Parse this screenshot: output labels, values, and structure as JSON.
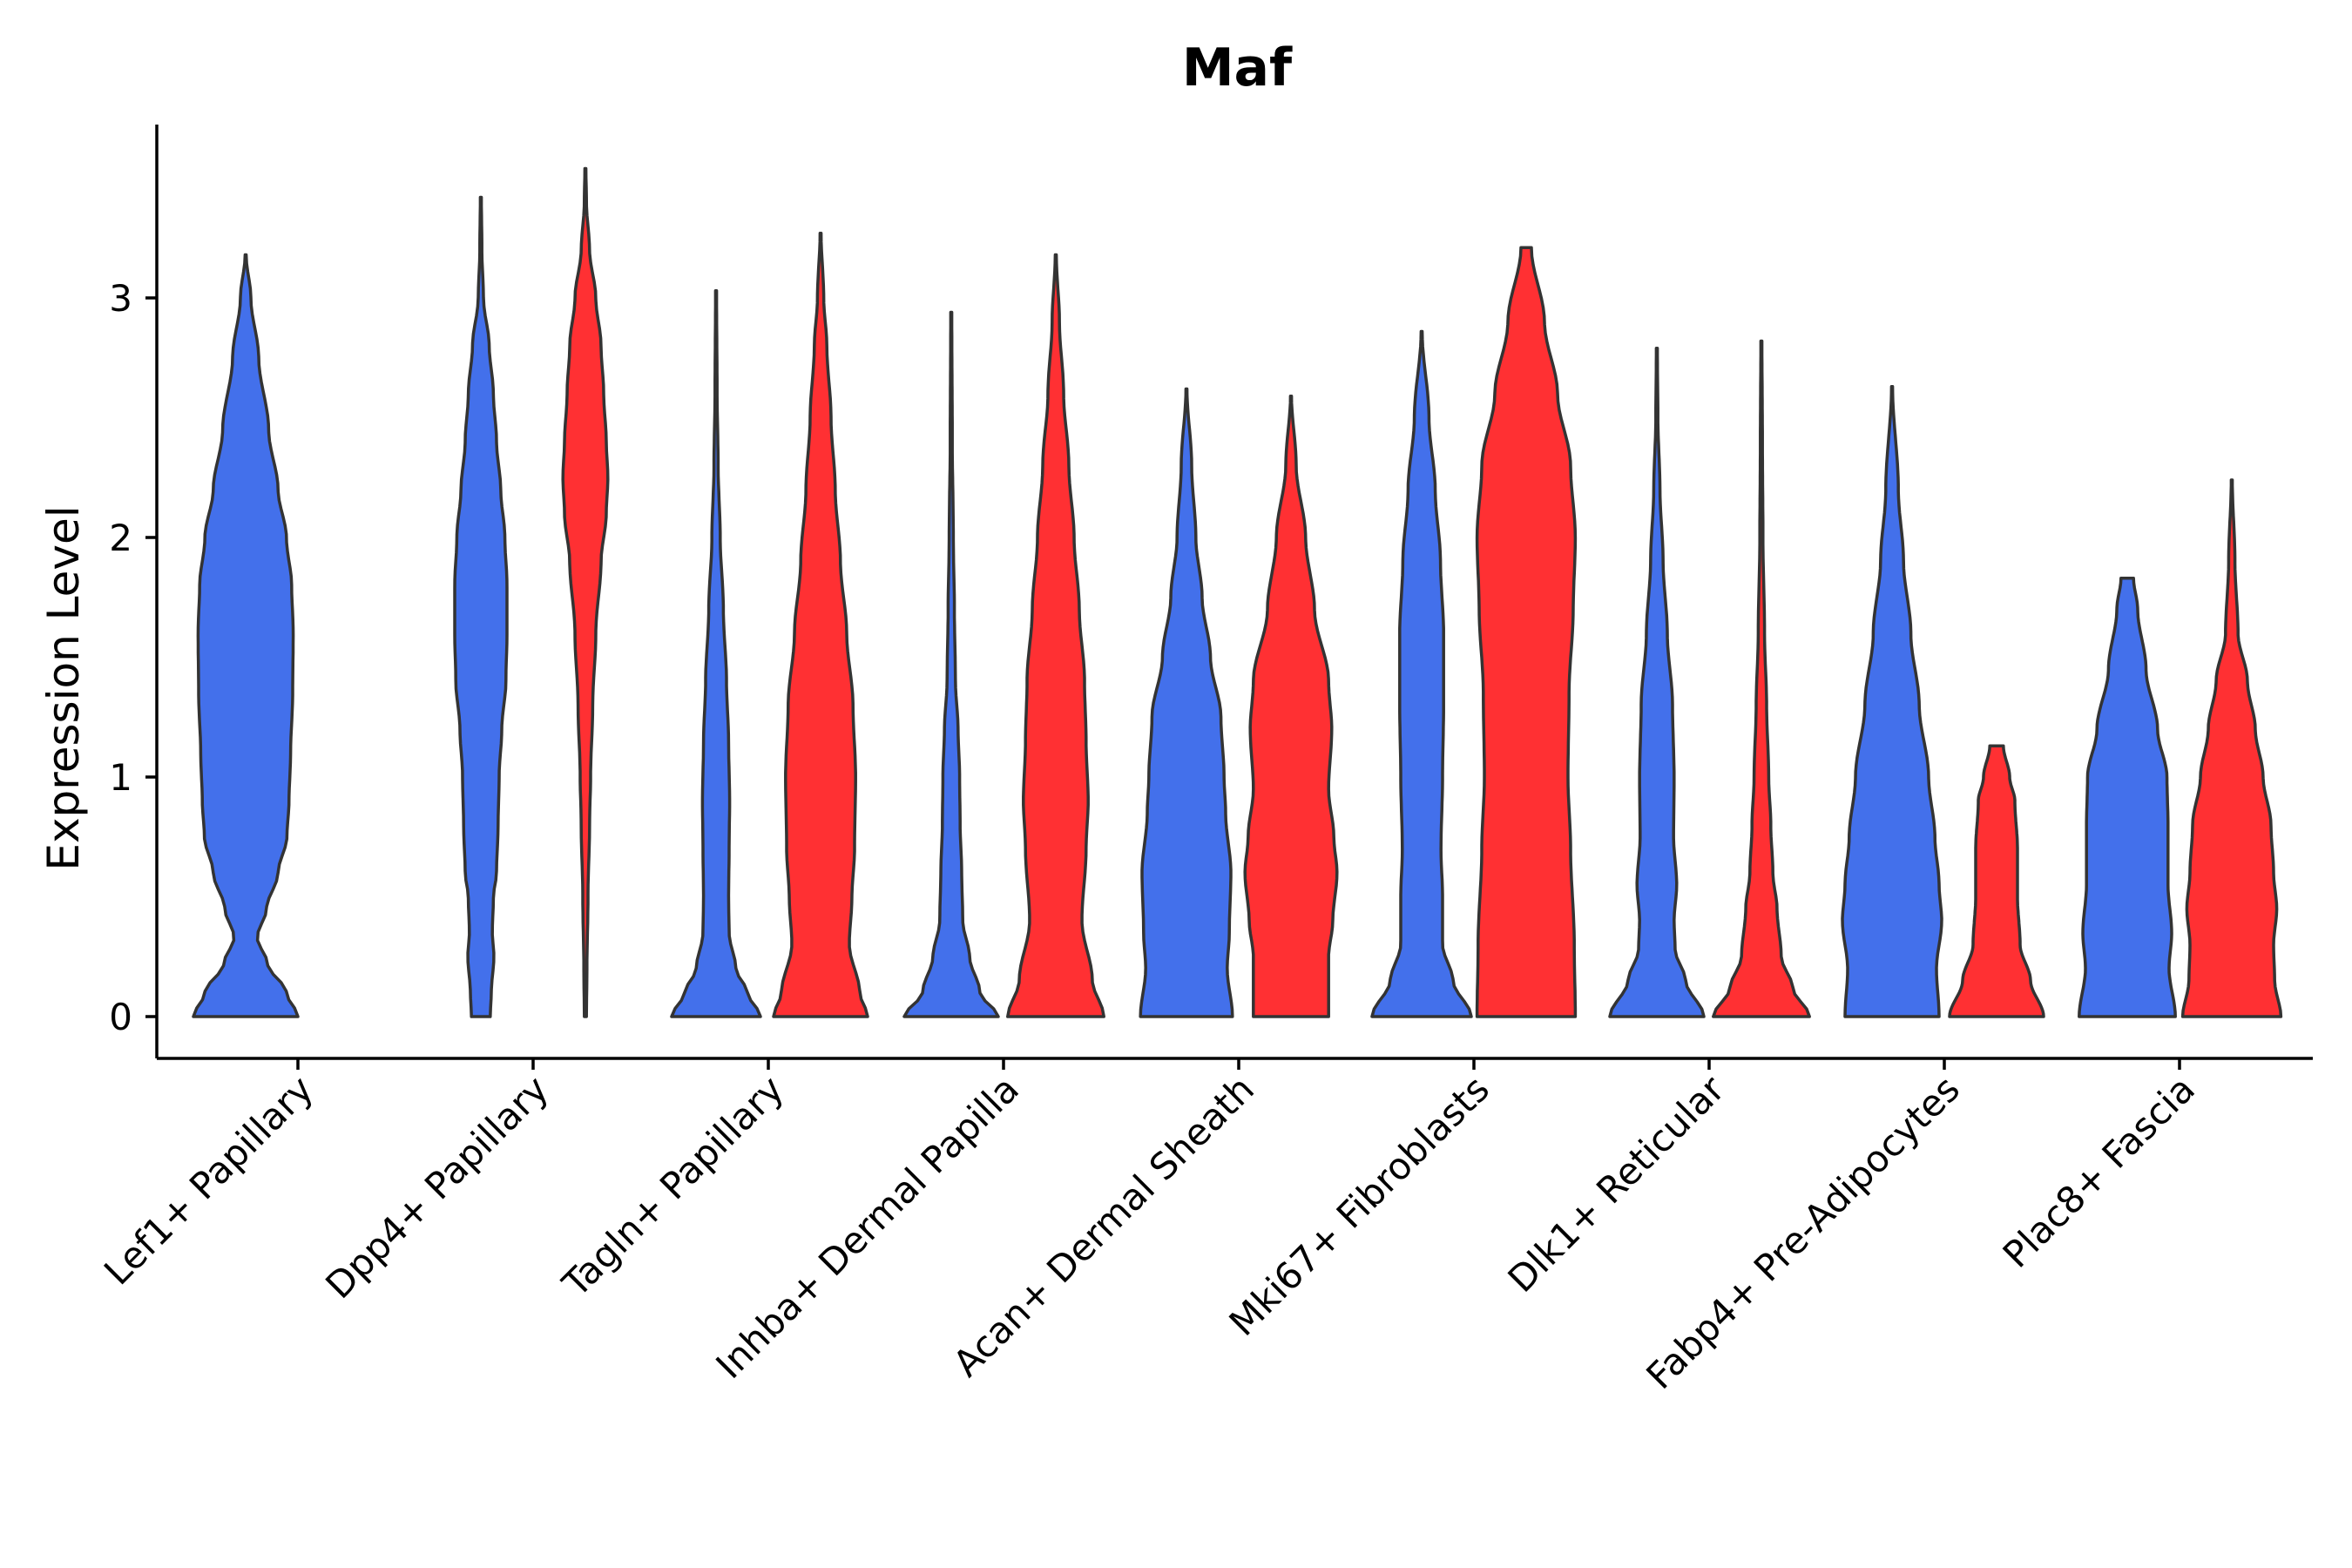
{
  "chart_data": {
    "type": "violin",
    "title": "Maf",
    "xlabel": "",
    "ylabel": "Expression Level",
    "ylim": [
      -0.17,
      3.72
    ],
    "y_ticks": [
      0,
      1,
      2,
      3
    ],
    "y_tick_labels": [
      "0",
      "1",
      "2",
      "3"
    ],
    "categories": [
      "Lef1+ Papillary",
      "Dpp4+ Papillary",
      "Tagln+ Papillary",
      "Inhba+ Dermal Papilla",
      "Acan+ Dermal Sheath",
      "Mki67+ Fibroblasts",
      "Dlk1+ Reticular",
      "Fabp4+ Pre-Adipocytes",
      "Plac8+ Fascia"
    ],
    "split_colors": [
      "#4370EB",
      "#FF3033"
    ],
    "violins": [
      {
        "category": "Lef1+ Papillary",
        "split": "left",
        "max": 3.18,
        "profile": [
          [
            0,
            1.0
          ],
          [
            0.1,
            0.78
          ],
          [
            0.22,
            0.42
          ],
          [
            0.33,
            0.22
          ],
          [
            0.45,
            0.4
          ],
          [
            0.6,
            0.62
          ],
          [
            0.75,
            0.79
          ],
          [
            0.9,
            0.83
          ],
          [
            1.1,
            0.86
          ],
          [
            1.35,
            0.9
          ],
          [
            1.6,
            0.91
          ],
          [
            1.8,
            0.88
          ],
          [
            2.0,
            0.78
          ],
          [
            2.2,
            0.62
          ],
          [
            2.45,
            0.44
          ],
          [
            2.75,
            0.25
          ],
          [
            3.0,
            0.1
          ],
          [
            3.18,
            0.01
          ]
        ]
      },
      {
        "category": "Dpp4+ Papillary",
        "split": "left",
        "max": 3.42,
        "profile": [
          [
            0,
            0.18
          ],
          [
            0.1,
            0.2
          ],
          [
            0.25,
            0.25
          ],
          [
            0.35,
            0.22
          ],
          [
            0.5,
            0.24
          ],
          [
            0.6,
            0.3
          ],
          [
            0.8,
            0.33
          ],
          [
            1.0,
            0.35
          ],
          [
            1.2,
            0.4
          ],
          [
            1.4,
            0.48
          ],
          [
            1.6,
            0.5
          ],
          [
            1.8,
            0.5
          ],
          [
            2.0,
            0.46
          ],
          [
            2.2,
            0.38
          ],
          [
            2.4,
            0.3
          ],
          [
            2.6,
            0.24
          ],
          [
            2.8,
            0.16
          ],
          [
            3.0,
            0.05
          ],
          [
            3.2,
            0.02
          ],
          [
            3.42,
            0.01
          ]
        ]
      },
      {
        "category": "Dpp4+ Papillary",
        "split": "right",
        "max": 3.54,
        "profile": [
          [
            0,
            0.02
          ],
          [
            0.2,
            0.03
          ],
          [
            0.5,
            0.05
          ],
          [
            0.8,
            0.08
          ],
          [
            1.0,
            0.1
          ],
          [
            1.3,
            0.14
          ],
          [
            1.6,
            0.2
          ],
          [
            1.9,
            0.3
          ],
          [
            2.1,
            0.4
          ],
          [
            2.25,
            0.43
          ],
          [
            2.4,
            0.4
          ],
          [
            2.6,
            0.35
          ],
          [
            2.8,
            0.3
          ],
          [
            3.0,
            0.2
          ],
          [
            3.2,
            0.08
          ],
          [
            3.4,
            0.02
          ],
          [
            3.54,
            0.01
          ]
        ]
      },
      {
        "category": "Tagln+ Papillary",
        "split": "left",
        "max": 3.03,
        "profile": [
          [
            0,
            0.85
          ],
          [
            0.1,
            0.6
          ],
          [
            0.2,
            0.38
          ],
          [
            0.35,
            0.25
          ],
          [
            0.5,
            0.24
          ],
          [
            0.7,
            0.25
          ],
          [
            0.9,
            0.26
          ],
          [
            1.15,
            0.24
          ],
          [
            1.4,
            0.2
          ],
          [
            1.7,
            0.14
          ],
          [
            2.0,
            0.08
          ],
          [
            2.3,
            0.04
          ],
          [
            2.6,
            0.02
          ],
          [
            3.03,
            0.01
          ]
        ]
      },
      {
        "category": "Tagln+ Papillary",
        "split": "right",
        "max": 3.27,
        "profile": [
          [
            0,
            0.9
          ],
          [
            0.1,
            0.75
          ],
          [
            0.3,
            0.55
          ],
          [
            0.5,
            0.6
          ],
          [
            0.7,
            0.65
          ],
          [
            1.0,
            0.67
          ],
          [
            1.3,
            0.62
          ],
          [
            1.6,
            0.5
          ],
          [
            1.9,
            0.38
          ],
          [
            2.2,
            0.28
          ],
          [
            2.5,
            0.2
          ],
          [
            2.8,
            0.12
          ],
          [
            3.0,
            0.06
          ],
          [
            3.27,
            0.01
          ]
        ]
      },
      {
        "category": "Inhba+ Dermal Papilla",
        "split": "left",
        "max": 2.94,
        "profile": [
          [
            0,
            0.9
          ],
          [
            0.1,
            0.55
          ],
          [
            0.25,
            0.35
          ],
          [
            0.4,
            0.22
          ],
          [
            0.6,
            0.2
          ],
          [
            0.8,
            0.17
          ],
          [
            1.0,
            0.16
          ],
          [
            1.2,
            0.13
          ],
          [
            1.4,
            0.08
          ],
          [
            1.7,
            0.06
          ],
          [
            2.0,
            0.04
          ],
          [
            2.4,
            0.02
          ],
          [
            2.94,
            0.01
          ]
        ]
      },
      {
        "category": "Inhba+ Dermal Papilla",
        "split": "right",
        "max": 3.18,
        "profile": [
          [
            0,
            0.92
          ],
          [
            0.15,
            0.7
          ],
          [
            0.4,
            0.5
          ],
          [
            0.7,
            0.58
          ],
          [
            0.9,
            0.62
          ],
          [
            1.15,
            0.58
          ],
          [
            1.4,
            0.55
          ],
          [
            1.7,
            0.45
          ],
          [
            2.0,
            0.35
          ],
          [
            2.3,
            0.25
          ],
          [
            2.6,
            0.15
          ],
          [
            2.9,
            0.07
          ],
          [
            3.18,
            0.01
          ]
        ]
      },
      {
        "category": "Acan+ Dermal Sheath",
        "split": "left",
        "max": 2.62,
        "profile": [
          [
            0,
            0.88
          ],
          [
            0.2,
            0.78
          ],
          [
            0.35,
            0.82
          ],
          [
            0.6,
            0.85
          ],
          [
            0.85,
            0.75
          ],
          [
            1.0,
            0.72
          ],
          [
            1.25,
            0.66
          ],
          [
            1.5,
            0.46
          ],
          [
            1.75,
            0.3
          ],
          [
            2.0,
            0.18
          ],
          [
            2.3,
            0.1
          ],
          [
            2.62,
            0.01
          ]
        ]
      },
      {
        "category": "Acan+ Dermal Sheath",
        "split": "right",
        "max": 2.59,
        "profile": [
          [
            0,
            0.72
          ],
          [
            0.25,
            0.72
          ],
          [
            0.4,
            0.8
          ],
          [
            0.6,
            0.88
          ],
          [
            0.75,
            0.82
          ],
          [
            0.95,
            0.72
          ],
          [
            1.2,
            0.78
          ],
          [
            1.4,
            0.72
          ],
          [
            1.7,
            0.45
          ],
          [
            2.0,
            0.28
          ],
          [
            2.3,
            0.1
          ],
          [
            2.59,
            0.01
          ]
        ]
      },
      {
        "category": "Mki67+ Fibroblasts",
        "split": "left",
        "max": 2.86,
        "profile": [
          [
            0,
            0.95
          ],
          [
            0.15,
            0.6
          ],
          [
            0.3,
            0.4
          ],
          [
            0.5,
            0.4
          ],
          [
            0.7,
            0.37
          ],
          [
            1.0,
            0.4
          ],
          [
            1.3,
            0.42
          ],
          [
            1.6,
            0.42
          ],
          [
            1.9,
            0.36
          ],
          [
            2.2,
            0.26
          ],
          [
            2.5,
            0.14
          ],
          [
            2.86,
            0.01
          ]
        ]
      },
      {
        "category": "Mki67+ Fibroblasts",
        "split": "right",
        "max": 3.21,
        "profile": [
          [
            0,
            0.94
          ],
          [
            0.3,
            0.92
          ],
          [
            0.7,
            0.85
          ],
          [
            1.0,
            0.8
          ],
          [
            1.35,
            0.82
          ],
          [
            1.7,
            0.9
          ],
          [
            2.0,
            0.94
          ],
          [
            2.3,
            0.85
          ],
          [
            2.6,
            0.6
          ],
          [
            2.9,
            0.35
          ],
          [
            3.21,
            0.1
          ]
        ]
      },
      {
        "category": "Dlk1+ Reticular",
        "split": "left",
        "max": 2.79,
        "profile": [
          [
            0,
            0.9
          ],
          [
            0.15,
            0.55
          ],
          [
            0.28,
            0.35
          ],
          [
            0.4,
            0.33
          ],
          [
            0.55,
            0.38
          ],
          [
            0.75,
            0.32
          ],
          [
            1.0,
            0.33
          ],
          [
            1.3,
            0.3
          ],
          [
            1.6,
            0.2
          ],
          [
            1.9,
            0.12
          ],
          [
            2.2,
            0.06
          ],
          [
            2.5,
            0.02
          ],
          [
            2.79,
            0.01
          ]
        ]
      },
      {
        "category": "Dlk1+ Reticular",
        "split": "right",
        "max": 2.82,
        "profile": [
          [
            0,
            0.92
          ],
          [
            0.12,
            0.6
          ],
          [
            0.25,
            0.38
          ],
          [
            0.45,
            0.3
          ],
          [
            0.6,
            0.22
          ],
          [
            0.8,
            0.18
          ],
          [
            1.0,
            0.14
          ],
          [
            1.3,
            0.1
          ],
          [
            1.6,
            0.06
          ],
          [
            2.0,
            0.03
          ],
          [
            2.4,
            0.02
          ],
          [
            2.82,
            0.01
          ]
        ]
      },
      {
        "category": "Fabp4+ Pre-Adipocytes",
        "split": "left",
        "max": 2.63,
        "profile": [
          [
            0,
            0.9
          ],
          [
            0.2,
            0.85
          ],
          [
            0.4,
            0.95
          ],
          [
            0.55,
            0.9
          ],
          [
            0.75,
            0.82
          ],
          [
            1.0,
            0.7
          ],
          [
            1.3,
            0.52
          ],
          [
            1.6,
            0.36
          ],
          [
            1.9,
            0.22
          ],
          [
            2.2,
            0.12
          ],
          [
            2.63,
            0.01
          ]
        ]
      },
      {
        "category": "Fabp4+ Pre-Adipocytes",
        "split": "right",
        "max": 1.13,
        "profile": [
          [
            0,
            0.9
          ],
          [
            0.15,
            0.65
          ],
          [
            0.3,
            0.45
          ],
          [
            0.5,
            0.4
          ],
          [
            0.7,
            0.4
          ],
          [
            0.9,
            0.35
          ],
          [
            1.0,
            0.25
          ],
          [
            1.13,
            0.13
          ]
        ]
      },
      {
        "category": "Plac8+ Fascia",
        "split": "left",
        "max": 1.83,
        "profile": [
          [
            0,
            0.92
          ],
          [
            0.2,
            0.8
          ],
          [
            0.35,
            0.85
          ],
          [
            0.55,
            0.78
          ],
          [
            0.8,
            0.78
          ],
          [
            1.0,
            0.76
          ],
          [
            1.2,
            0.58
          ],
          [
            1.45,
            0.36
          ],
          [
            1.7,
            0.2
          ],
          [
            1.83,
            0.12
          ]
        ]
      },
      {
        "category": "Plac8+ Fascia",
        "split": "right",
        "max": 2.24,
        "profile": [
          [
            0,
            0.94
          ],
          [
            0.15,
            0.82
          ],
          [
            0.3,
            0.8
          ],
          [
            0.45,
            0.86
          ],
          [
            0.6,
            0.8
          ],
          [
            0.8,
            0.75
          ],
          [
            1.0,
            0.6
          ],
          [
            1.2,
            0.45
          ],
          [
            1.4,
            0.3
          ],
          [
            1.6,
            0.12
          ],
          [
            1.9,
            0.06
          ],
          [
            2.24,
            0.01
          ]
        ]
      }
    ]
  }
}
